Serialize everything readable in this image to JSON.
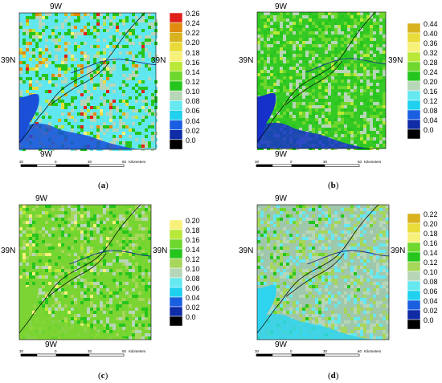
{
  "panels": [
    {
      "id": "a",
      "caption": "a",
      "lon_top": "9W",
      "lon_bottom": "9W",
      "lat_left": "39N",
      "lat_right": "39N",
      "legend": {
        "ticks": [
          "0.26",
          "0.24",
          "0.22",
          "0.20",
          "0.18",
          "0.16",
          "0.14",
          "0.12",
          "0.10",
          "0.08",
          "0.06",
          "0.04",
          "0.02",
          "0.0"
        ],
        "colors": [
          "#e0201a",
          "#e08a10",
          "#d9b21f",
          "#e9dc3a",
          "#f7f17a",
          "#b9e838",
          "#6fd72d",
          "#26c51d",
          "#b7d6b8",
          "#66e8f0",
          "#1fd0ef",
          "#1a5fe0",
          "#0f2ba5",
          "#000000"
        ]
      },
      "scalebar": {
        "labels": [
          "30",
          "0",
          "30",
          "60"
        ],
        "unit": "Kilometers"
      },
      "texture_seed": 11,
      "base_color": "#5fe6ee"
    },
    {
      "id": "b",
      "caption": "b",
      "lon_top": "9W",
      "lon_bottom": "9W",
      "lat_left": "39N",
      "lat_right": "39N",
      "legend": {
        "ticks": [
          "0.44",
          "0.40",
          "0.36",
          "0.32",
          "0.28",
          "0.24",
          "0.20",
          "0.16",
          "0.12",
          "0.08",
          "0.04",
          "0.0"
        ],
        "colors": [
          "#d9b21f",
          "#e9dc3a",
          "#f7f17a",
          "#b9e838",
          "#6fd72d",
          "#26c51d",
          "#b7d6b8",
          "#66e8f0",
          "#1fd0ef",
          "#1a5fe0",
          "#0f2ba5",
          "#000000"
        ]
      },
      "scalebar": {
        "labels": [
          "30",
          "0",
          "30",
          "60"
        ],
        "unit": "Kilometers"
      },
      "texture_seed": 23,
      "base_color": "#34c925"
    },
    {
      "id": "c",
      "caption": "c",
      "lon_top": "9W",
      "lon_bottom": "9W",
      "lat_left": "39N",
      "lat_right": "39N",
      "legend": {
        "ticks": [
          "0.20",
          "0.18",
          "0.16",
          "0.14",
          "0.12",
          "0.10",
          "0.08",
          "0.06",
          "0.04",
          "0.02",
          "0.0"
        ],
        "colors": [
          "#f7f17a",
          "#b9e838",
          "#6fd72d",
          "#26c51d",
          "#a6d65a",
          "#b7d6b8",
          "#66e8f0",
          "#1fd0ef",
          "#1a5fe0",
          "#0f2ba5",
          "#000000"
        ]
      },
      "scalebar": {
        "labels": [
          "30",
          "0",
          "30",
          "60"
        ],
        "unit": "Kilometers"
      },
      "texture_seed": 37,
      "base_color": "#7bd433"
    },
    {
      "id": "d",
      "caption": "d",
      "lon_top": "9W",
      "lon_bottom": "9W",
      "lat_left": "39N",
      "lat_right": "39N",
      "legend": {
        "ticks": [
          "0.22",
          "0.20",
          "0.18",
          "0.16",
          "0.14",
          "0.12",
          "0.10",
          "0.08",
          "0.06",
          "0.04",
          "0.02",
          "0.0"
        ],
        "colors": [
          "#d9b21f",
          "#e9dc3a",
          "#f7f17a",
          "#6fd72d",
          "#26c51d",
          "#a6d65a",
          "#b7d6b8",
          "#66e8f0",
          "#1fd0ef",
          "#1a5fe0",
          "#0f2ba5",
          "#000000"
        ]
      },
      "scalebar": {
        "labels": [
          "30",
          "0",
          "30",
          "60"
        ],
        "unit": "Kilometers"
      },
      "texture_seed": 53,
      "base_color": "#9fc7ac"
    }
  ]
}
